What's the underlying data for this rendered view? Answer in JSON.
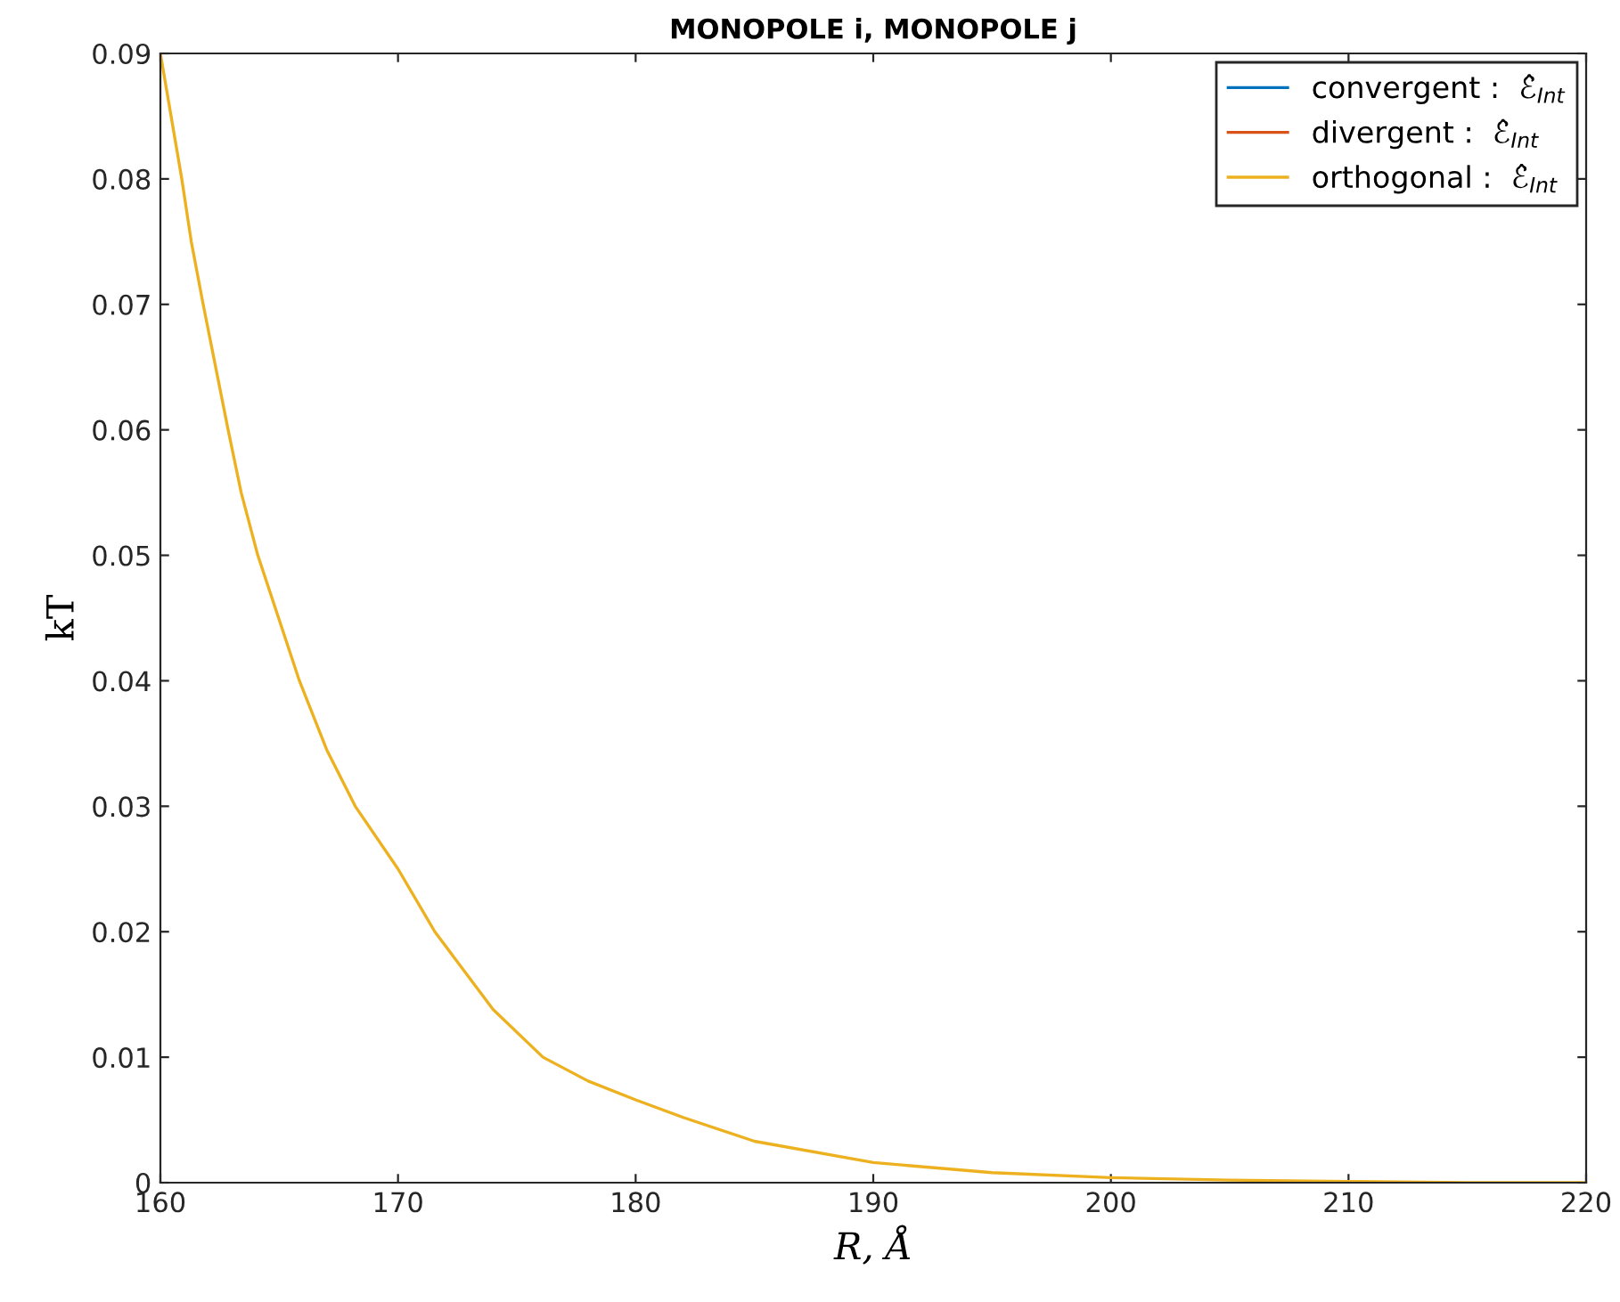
{
  "chart_data": {
    "type": "line",
    "title": "MONOPOLE i, MONOPOLE j",
    "xlabel": "R, Å",
    "ylabel": "kT",
    "xlim": [
      160,
      220
    ],
    "xticks": [
      160,
      170,
      180,
      190,
      200,
      210,
      220
    ],
    "ylim": [
      0,
      0.09
    ],
    "yticks": [
      0,
      0.01,
      0.02,
      0.03,
      0.04,
      0.05,
      0.06,
      0.07,
      0.08,
      0.09
    ],
    "grid": false,
    "legend": "top right",
    "marker": "none",
    "line_style": "solid",
    "x": [
      160,
      160.9,
      161.3,
      161.8,
      162.85,
      163.4,
      164.1,
      165.85,
      167,
      168.2,
      170,
      171.55,
      174,
      176.1,
      178,
      180,
      182,
      185,
      190,
      195,
      200,
      205,
      210,
      215,
      220
    ],
    "series": [
      {
        "name": "convergent :  ℰ̂$_{Int}$",
        "color": "#0072bd",
        "values": [
          null,
          null,
          null,
          null,
          null,
          null,
          null,
          null,
          null,
          null,
          null,
          null,
          null,
          null,
          null,
          null,
          null,
          null,
          null,
          null,
          null,
          null,
          null,
          null,
          null
        ]
      },
      {
        "name": "divergent :  ℰ̂$_{Int}$",
        "color": "#d95319",
        "values": [
          null,
          null,
          null,
          null,
          null,
          null,
          null,
          null,
          null,
          null,
          null,
          null,
          null,
          null,
          null,
          null,
          null,
          null,
          null,
          null,
          null,
          null,
          null,
          null,
          null
        ]
      },
      {
        "name": "orthogonal :  ℰ̂$_{Int}$",
        "color": "#edb120",
        "values": [
          0.09,
          0.08,
          0.075,
          0.07,
          0.06,
          0.055,
          0.05,
          0.04,
          0.0345,
          0.03,
          0.025,
          0.02,
          0.0138,
          0.01,
          0.0081,
          0.0066,
          0.0052,
          0.0033,
          0.0016,
          0.0008,
          0.0004,
          0.0002,
          0.0001,
          0,
          0
        ]
      }
    ]
  }
}
